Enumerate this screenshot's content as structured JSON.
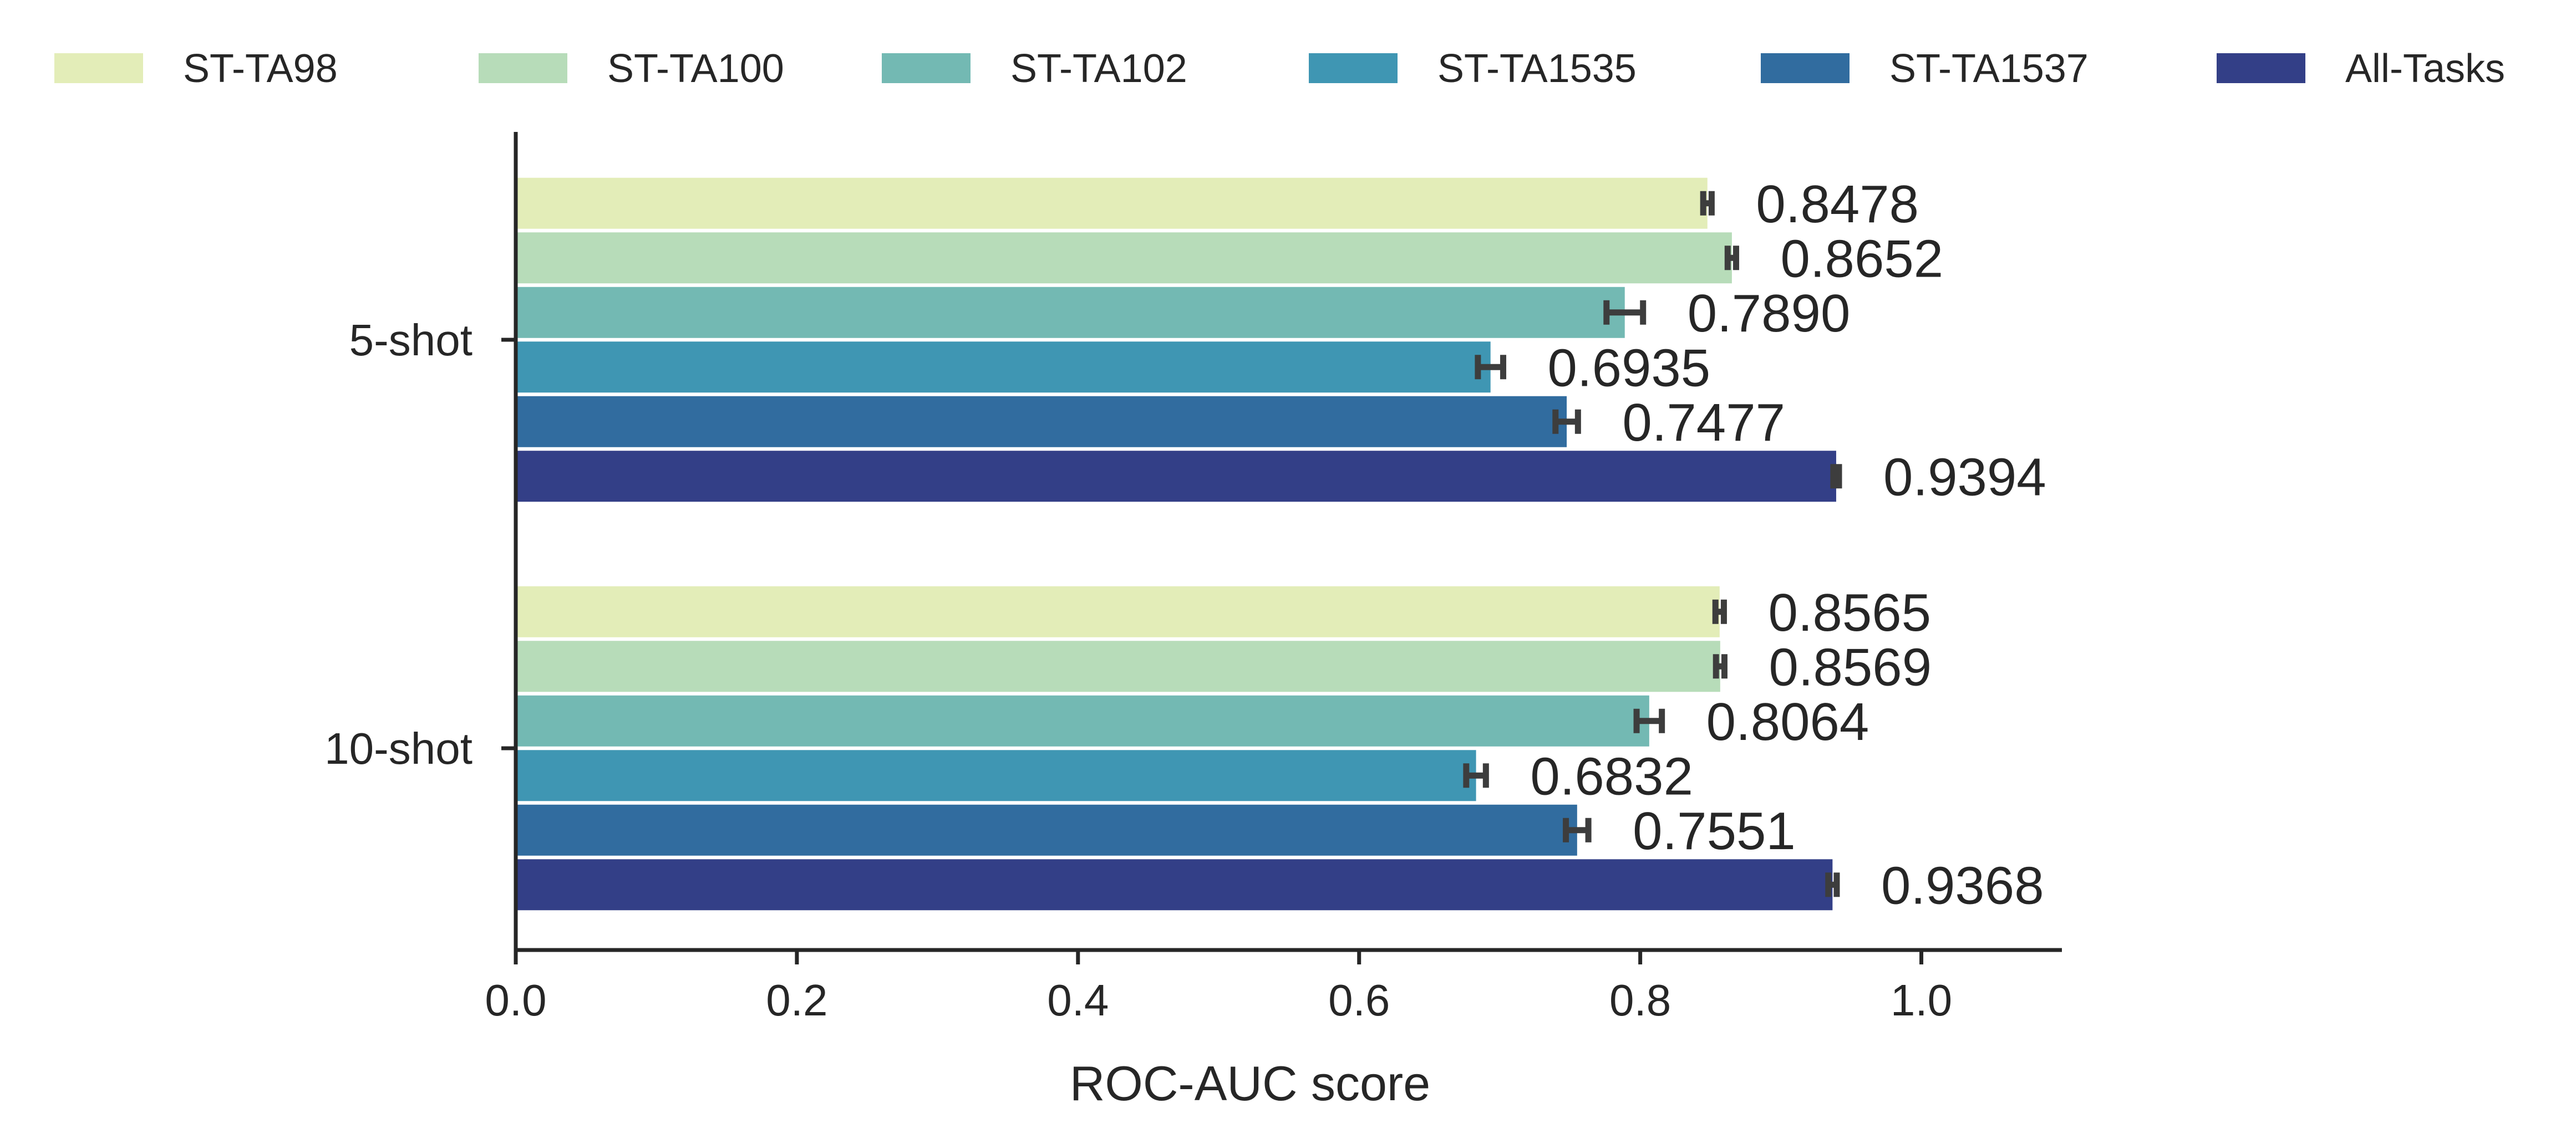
{
  "chart_data": {
    "type": "bar",
    "orientation": "horizontal",
    "title": "",
    "xlabel": "ROC-AUC score",
    "ylabel": "",
    "xlim": [
      0,
      1.1
    ],
    "xticks": [
      "0.0",
      "0.2",
      "0.4",
      "0.6",
      "0.8",
      "1.0"
    ],
    "categories": [
      "5-shot",
      "10-shot"
    ],
    "legend_position": "top",
    "series": [
      {
        "name": "ST-TA98",
        "color": "#e3edb8",
        "values": [
          0.8478,
          0.8565
        ],
        "errors": [
          0.003,
          0.003
        ],
        "labels": [
          "0.8478",
          "0.8565"
        ]
      },
      {
        "name": "ST-TA100",
        "color": "#b7dcb9",
        "values": [
          0.8652,
          0.8569
        ],
        "errors": [
          0.003,
          0.003
        ],
        "labels": [
          "0.8652",
          "0.8569"
        ]
      },
      {
        "name": "ST-TA102",
        "color": "#73b9b3",
        "values": [
          0.789,
          0.8064
        ],
        "errors": [
          0.013,
          0.009
        ],
        "labels": [
          "0.7890",
          "0.8064"
        ]
      },
      {
        "name": "ST-TA1535",
        "color": "#3f96b3",
        "values": [
          0.6935,
          0.6832
        ],
        "errors": [
          0.009,
          0.007
        ],
        "labels": [
          "0.6935",
          "0.6832"
        ]
      },
      {
        "name": "ST-TA1537",
        "color": "#316c9f",
        "values": [
          0.7477,
          0.7551
        ],
        "errors": [
          0.008,
          0.008
        ],
        "labels": [
          "0.7477",
          "0.7551"
        ]
      },
      {
        "name": "All-Tasks",
        "color": "#333f87",
        "values": [
          0.9394,
          0.9368
        ],
        "errors": [
          0.002,
          0.003
        ],
        "labels": [
          "0.9394",
          "0.9368"
        ]
      }
    ],
    "grid": false
  }
}
